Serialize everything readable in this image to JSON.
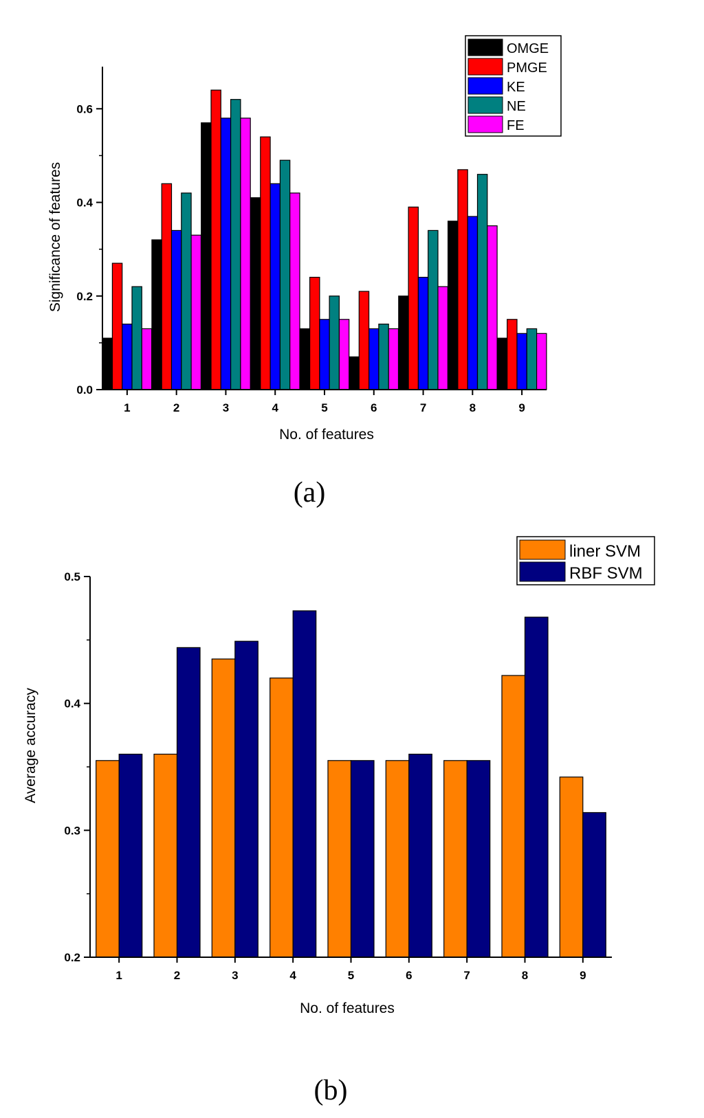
{
  "colors": {
    "OMGE": "#000000",
    "PMGE": "#ff0000",
    "KE": "#0000ff",
    "NE": "#008080",
    "FE": "#ff00ff",
    "liner SVM": "#ff8000",
    "RBF SVM": "#000080"
  },
  "chart_data": [
    {
      "type": "bar",
      "caption": "(a)",
      "title": "",
      "xlabel": "No. of features",
      "ylabel": "Significance of features",
      "ylim": [
        0,
        0.69
      ],
      "yticks": [
        0.0,
        0.2,
        0.4,
        0.6
      ],
      "ytick_labels": [
        "0.0",
        "0.2",
        "0.4",
        "0.6"
      ],
      "categories": [
        "1",
        "2",
        "3",
        "4",
        "5",
        "6",
        "7",
        "8",
        "9"
      ],
      "legend_position": "top-right",
      "series": [
        {
          "name": "OMGE",
          "values": [
            0.11,
            0.32,
            0.57,
            0.41,
            0.13,
            0.07,
            0.2,
            0.36,
            0.11
          ]
        },
        {
          "name": "PMGE",
          "values": [
            0.27,
            0.44,
            0.64,
            0.54,
            0.24,
            0.21,
            0.39,
            0.47,
            0.15
          ]
        },
        {
          "name": "KE",
          "values": [
            0.14,
            0.34,
            0.58,
            0.44,
            0.15,
            0.13,
            0.24,
            0.37,
            0.12
          ]
        },
        {
          "name": "NE",
          "values": [
            0.22,
            0.42,
            0.62,
            0.49,
            0.2,
            0.14,
            0.34,
            0.46,
            0.13
          ]
        },
        {
          "name": "FE",
          "values": [
            0.13,
            0.33,
            0.58,
            0.42,
            0.15,
            0.13,
            0.22,
            0.35,
            0.12
          ]
        }
      ]
    },
    {
      "type": "bar",
      "caption": "(b)",
      "title": "",
      "xlabel": "No. of features",
      "ylabel": "Average accuracy",
      "ylim": [
        0.2,
        0.5
      ],
      "yticks": [
        0.2,
        0.3,
        0.4,
        0.5
      ],
      "ytick_labels": [
        "0.2",
        "0.3",
        "0.4",
        "0.5"
      ],
      "categories": [
        "1",
        "2",
        "3",
        "4",
        "5",
        "6",
        "7",
        "8",
        "9"
      ],
      "legend_position": "top-right",
      "series": [
        {
          "name": "liner SVM",
          "values": [
            0.355,
            0.36,
            0.435,
            0.42,
            0.355,
            0.355,
            0.355,
            0.422,
            0.342
          ]
        },
        {
          "name": "RBF SVM",
          "values": [
            0.36,
            0.444,
            0.449,
            0.473,
            0.355,
            0.36,
            0.355,
            0.468,
            0.314
          ]
        }
      ]
    }
  ]
}
